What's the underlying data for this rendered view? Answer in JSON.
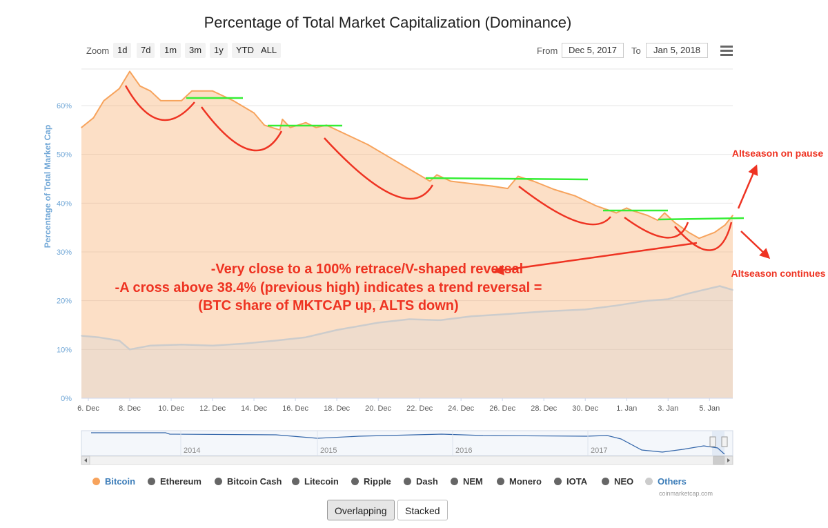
{
  "chart_data": {
    "type": "area",
    "title": "Percentage of Total Market Capitalization (Dominance)",
    "ylabel": "Percentage of Total Market Cap",
    "ylim": [
      0,
      67.5
    ],
    "yticks": [
      "0%",
      "10%",
      "20%",
      "30%",
      "40%",
      "50%",
      "60%"
    ],
    "xlim": [
      "2017-12-05T16:00",
      "2018-01-06T03:00"
    ],
    "xticks": [
      "6. Dec",
      "8. Dec",
      "10. Dec",
      "12. Dec",
      "14. Dec",
      "16. Dec",
      "18. Dec",
      "20. Dec",
      "22. Dec",
      "24. Dec",
      "26. Dec",
      "28. Dec",
      "30. Dec",
      "1. Jan",
      "3. Jan",
      "5. Jan"
    ],
    "legend_position": "bottom",
    "series": [
      {
        "name": "Bitcoin",
        "color": "#f7a35c",
        "points": [
          [
            "2017-12-05T16:00",
            55.5
          ],
          [
            "2017-12-06T06:00",
            57.5
          ],
          [
            "2017-12-06T18:00",
            61.0
          ],
          [
            "2017-12-07T12:00",
            63.5
          ],
          [
            "2017-12-08T00:00",
            67.0
          ],
          [
            "2017-12-08T12:00",
            64.0
          ],
          [
            "2017-12-09T00:00",
            63.0
          ],
          [
            "2017-12-09T12:00",
            61.0
          ],
          [
            "2017-12-10T12:00",
            61.0
          ],
          [
            "2017-12-11T00:00",
            63.0
          ],
          [
            "2017-12-11T12:00",
            63.0
          ],
          [
            "2017-12-12T00:00",
            63.0
          ],
          [
            "2017-12-13T00:00",
            61.0
          ],
          [
            "2017-12-14T00:00",
            58.5
          ],
          [
            "2017-12-14T12:00",
            56.0
          ],
          [
            "2017-12-15T06:00",
            55.0
          ],
          [
            "2017-12-15T09:00",
            57.2
          ],
          [
            "2017-12-15T18:00",
            55.5
          ],
          [
            "2017-12-16T12:00",
            56.5
          ],
          [
            "2017-12-17T00:00",
            55.5
          ],
          [
            "2017-12-17T12:00",
            56.0
          ],
          [
            "2017-12-18T12:00",
            54.0
          ],
          [
            "2017-12-19T12:00",
            52.0
          ],
          [
            "2017-12-20T12:00",
            49.5
          ],
          [
            "2017-12-21T12:00",
            47.0
          ],
          [
            "2017-12-22T12:00",
            44.5
          ],
          [
            "2017-12-22T20:00",
            45.8
          ],
          [
            "2017-12-23T12:00",
            44.5
          ],
          [
            "2017-12-24T12:00",
            44.0
          ],
          [
            "2017-12-25T12:00",
            43.5
          ],
          [
            "2017-12-26T06:00",
            43.0
          ],
          [
            "2017-12-26T18:00",
            45.5
          ],
          [
            "2017-12-27T12:00",
            44.5
          ],
          [
            "2017-12-28T12:00",
            42.8
          ],
          [
            "2017-12-29T12:00",
            41.5
          ],
          [
            "2017-12-30T12:00",
            39.5
          ],
          [
            "2017-12-31T12:00",
            38.0
          ],
          [
            "2018-01-01T00:00",
            39.0
          ],
          [
            "2018-01-01T06:00",
            38.5
          ],
          [
            "2018-01-02T00:00",
            37.5
          ],
          [
            "2018-01-02T12:00",
            36.5
          ],
          [
            "2018-01-02T20:00",
            38.0
          ],
          [
            "2018-01-03T08:00",
            36.0
          ],
          [
            "2018-01-04T00:00",
            34.0
          ],
          [
            "2018-01-04T12:00",
            32.8
          ],
          [
            "2018-01-05T06:00",
            34.0
          ],
          [
            "2018-01-05T18:00",
            35.5
          ],
          [
            "2018-01-06T03:00",
            37.5
          ]
        ]
      },
      {
        "name": "Others",
        "color": "#cccccc",
        "points": [
          [
            "2017-12-05T16:00",
            12.8
          ],
          [
            "2017-12-06T12:00",
            12.5
          ],
          [
            "2017-12-07T12:00",
            11.8
          ],
          [
            "2017-12-08T00:00",
            10.0
          ],
          [
            "2017-12-09T00:00",
            10.8
          ],
          [
            "2017-12-10T12:00",
            11.0
          ],
          [
            "2017-12-12T00:00",
            10.8
          ],
          [
            "2017-12-13T12:00",
            11.2
          ],
          [
            "2017-12-15T00:00",
            11.8
          ],
          [
            "2017-12-16T12:00",
            12.5
          ],
          [
            "2017-12-18T00:00",
            14.0
          ],
          [
            "2017-12-20T00:00",
            15.5
          ],
          [
            "2017-12-21T12:00",
            16.2
          ],
          [
            "2017-12-23T00:00",
            16.0
          ],
          [
            "2017-12-24T12:00",
            16.8
          ],
          [
            "2017-12-26T00:00",
            17.2
          ],
          [
            "2017-12-28T00:00",
            17.8
          ],
          [
            "2017-12-30T00:00",
            18.2
          ],
          [
            "2017-12-31T12:00",
            19.0
          ],
          [
            "2018-01-02T00:00",
            20.0
          ],
          [
            "2018-01-03T00:00",
            20.3
          ],
          [
            "2018-01-04T00:00",
            21.5
          ],
          [
            "2018-01-05T00:00",
            22.5
          ],
          [
            "2018-01-05T12:00",
            23.0
          ],
          [
            "2018-01-06T03:00",
            22.2
          ]
        ]
      }
    ],
    "navigator": {
      "tick_labels": [
        "2014",
        "2015",
        "2016",
        "2017"
      ]
    },
    "annotations": {
      "curves_color": "#ee3322",
      "levels_color": "#33ee33",
      "text_main": [
        "-Very close to a 100% retrace/V-shaped reversal",
        "-A cross above 38.4% (previous high) indicates a trend reversal =",
        "(BTC share of MKTCAP up, ALTS down)"
      ],
      "text_pause": "Altseason on pause",
      "text_continues": "Altseason continues"
    }
  },
  "toolbar": {
    "zoom_label": "Zoom",
    "zoom_buttons": [
      "1d",
      "7d",
      "1m",
      "3m",
      "1y",
      "YTD",
      "ALL"
    ],
    "from_label": "From",
    "from_value": "Dec 5, 2017",
    "to_label": "To",
    "to_value": "Jan 5, 2018"
  },
  "legend": [
    {
      "label": "Bitcoin",
      "color": "#f7a35c",
      "text_color": "#3b7cb8"
    },
    {
      "label": "Ethereum",
      "color": "#666666",
      "text_color": "#333333"
    },
    {
      "label": "Bitcoin Cash",
      "color": "#666666",
      "text_color": "#333333"
    },
    {
      "label": "Litecoin",
      "color": "#666666",
      "text_color": "#333333"
    },
    {
      "label": "Ripple",
      "color": "#666666",
      "text_color": "#333333"
    },
    {
      "label": "Dash",
      "color": "#666666",
      "text_color": "#333333"
    },
    {
      "label": "NEM",
      "color": "#666666",
      "text_color": "#333333"
    },
    {
      "label": "Monero",
      "color": "#666666",
      "text_color": "#333333"
    },
    {
      "label": "IOTA",
      "color": "#666666",
      "text_color": "#333333"
    },
    {
      "label": "NEO",
      "color": "#666666",
      "text_color": "#333333"
    },
    {
      "label": "Others",
      "color": "#cccccc",
      "text_color": "#3b7cb8"
    }
  ],
  "credits": "coinmarketcap.com",
  "type_buttons": [
    "Overlapping",
    "Stacked"
  ]
}
